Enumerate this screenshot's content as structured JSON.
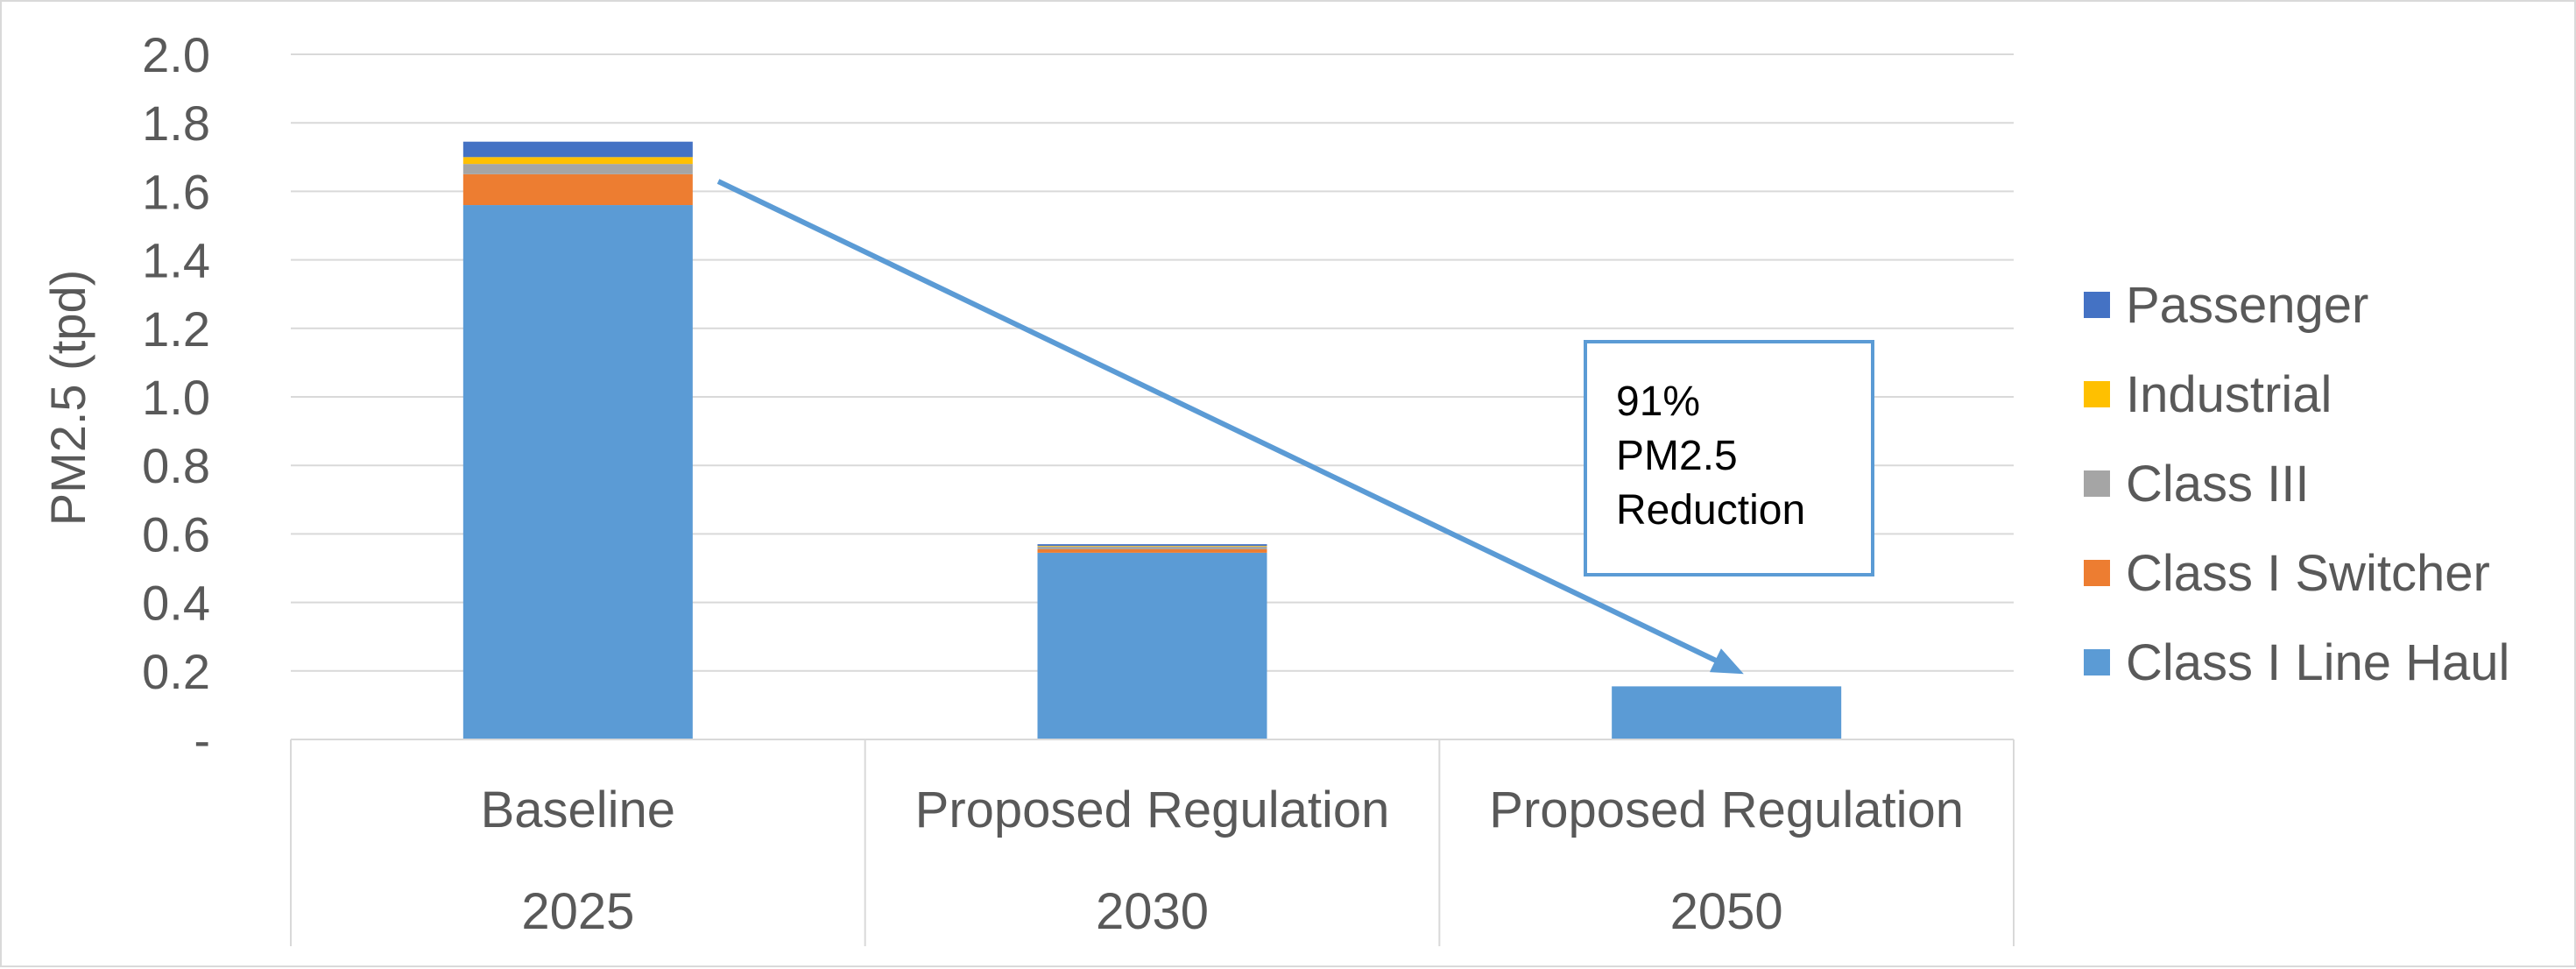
{
  "chart_data": {
    "type": "bar",
    "stacked": true,
    "title": "",
    "ylabel": "PM2.5 (tpd)",
    "xlabel": "",
    "ylim": [
      0,
      2.0
    ],
    "yticks": [
      "-",
      "0.2",
      "0.4",
      "0.6",
      "0.8",
      "1.0",
      "1.2",
      "1.4",
      "1.6",
      "1.8",
      "2.0"
    ],
    "categories": [
      {
        "name": "Baseline",
        "year": "2025"
      },
      {
        "name": "Proposed Regulation",
        "year": "2030"
      },
      {
        "name": "Proposed Regulation",
        "year": "2050"
      }
    ],
    "series": [
      {
        "name": "Class I Line Haul",
        "color": "#5b9bd5",
        "values": [
          1.56,
          0.545,
          0.155
        ]
      },
      {
        "name": "Class I Switcher",
        "color": "#ed7d31",
        "values": [
          0.09,
          0.01,
          0.0
        ]
      },
      {
        "name": "Class III",
        "color": "#a5a5a5",
        "values": [
          0.03,
          0.008,
          0.0
        ]
      },
      {
        "name": "Industrial",
        "color": "#ffc000",
        "values": [
          0.02,
          0.002,
          0.0
        ]
      },
      {
        "name": "Passenger",
        "color": "#4472c4",
        "values": [
          0.045,
          0.005,
          0.0
        ]
      }
    ],
    "legend_order": [
      "Passenger",
      "Industrial",
      "Class III",
      "Class I Switcher",
      "Class I Line Haul"
    ],
    "legend_position": "right",
    "grid": true,
    "annotation": {
      "lines": [
        "91%",
        "PM2.5",
        "Reduction"
      ],
      "arrow_color": "#5b9bd5",
      "box_border_color": "#5b9bd5"
    }
  }
}
